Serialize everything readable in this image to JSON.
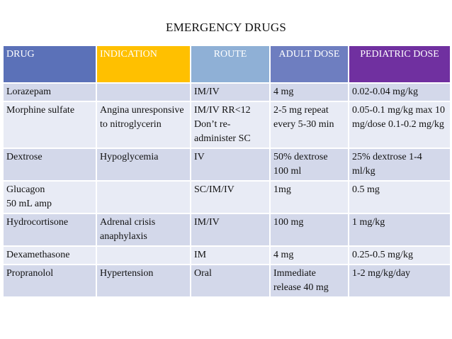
{
  "title": "EMERGENCY DRUGS",
  "colors": {
    "drug_header": "#5b71b8",
    "indication_header": "#ffc000",
    "route_header": "#8fb0d6",
    "adult_header": "#6e7ec0",
    "pediatric_header": "#7030a0",
    "row_dark": "#d3d8ea",
    "row_light": "#e8ebf5"
  },
  "headers": {
    "drug": "DRUG",
    "indication": "INDICATION",
    "route": "ROUTE",
    "adult_dose": "ADULT DOSE",
    "pediatric_dose": "PEDIATRIC DOSE"
  },
  "rows": [
    {
      "drug": "Lorazepam",
      "indication": "",
      "route": "IM/IV",
      "adult_dose": "4 mg",
      "pediatric_dose": "0.02-0.04 mg/kg"
    },
    {
      "drug": "Morphine sulfate",
      "indication": "Angina unresponsive to nitroglycerin",
      "route": "IM/IV RR<12 Don’t re-administer SC",
      "adult_dose": "2-5 mg repeat every 5-30 min",
      "pediatric_dose": "0.05-0.1 mg/kg max 10 mg/dose 0.1-0.2 mg/kg"
    },
    {
      "drug": "Dextrose",
      "indication": "Hypoglycemia",
      "route": "IV",
      "adult_dose": "50% dextrose 100 ml",
      "pediatric_dose": "25% dextrose 1-4 ml/kg"
    },
    {
      "drug": "Glucagon\n 50 mL amp",
      "indication": "",
      "route": "SC/IM/IV",
      "adult_dose": "1mg",
      "pediatric_dose": "0.5 mg"
    },
    {
      "drug": "Hydrocortisone",
      "indication": "Adrenal crisis anaphylaxis",
      "route": "IM/IV",
      "adult_dose": "100 mg",
      "pediatric_dose": "1 mg/kg"
    },
    {
      "drug": "Dexamethasone",
      "indication": "",
      "route": "IM",
      "adult_dose": "4 mg",
      "pediatric_dose": "0.25-0.5 mg/kg"
    },
    {
      "drug": "Propranolol",
      "indication": "Hypertension",
      "route": "Oral",
      "adult_dose": "Immediate release 40 mg",
      "pediatric_dose": "1-2 mg/kg/day"
    }
  ]
}
